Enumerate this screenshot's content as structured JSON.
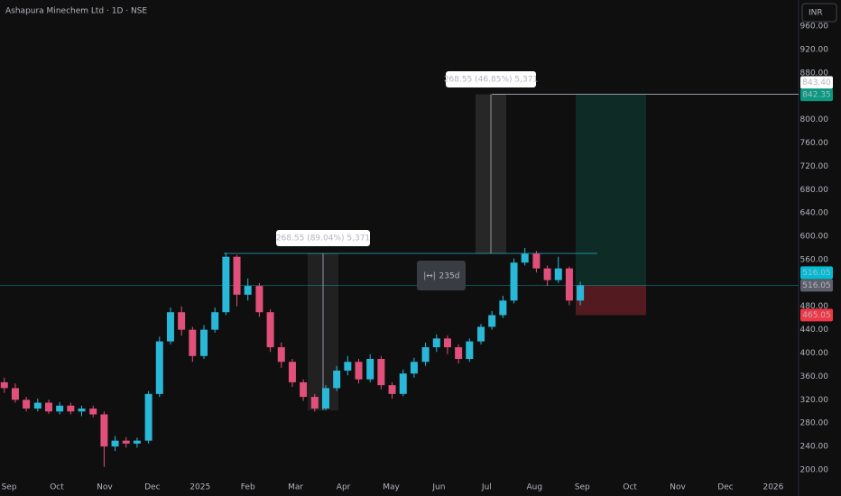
{
  "chart_data": {
    "type": "candlestick",
    "title": "Ashapura Minechem Ltd · 1D · NSE",
    "currency": "INR",
    "up_color": "#2ab8d8",
    "down_color": "#e0507a",
    "x": [
      -0.1,
      0.13,
      0.36,
      0.6,
      0.83,
      1.06,
      1.29,
      1.52,
      1.76,
      1.99,
      2.22,
      2.45,
      2.68,
      2.92,
      3.15,
      3.38,
      3.61,
      3.84,
      4.08,
      4.31,
      4.54,
      4.77,
      5,
      5.24,
      5.47,
      5.7,
      5.93,
      6.16,
      6.4,
      6.63,
      6.86,
      7.09,
      7.32,
      7.56,
      7.79,
      8.02,
      8.25,
      8.48,
      8.72,
      8.95,
      9.18,
      9.41,
      9.64,
      9.88,
      10.11,
      10.34,
      10.57,
      10.8,
      11.04,
      11.27,
      11.5,
      11.73,
      11.96
    ],
    "open": [
      350,
      340,
      320,
      305,
      315,
      300,
      310,
      300,
      305,
      295,
      240,
      250,
      245,
      250,
      330,
      420,
      470,
      440,
      395,
      440,
      470,
      565,
      500,
      515,
      470,
      410,
      385,
      350,
      325,
      305,
      340,
      370,
      385,
      355,
      390,
      345,
      330,
      365,
      385,
      410,
      425,
      410,
      390,
      420,
      445,
      465,
      490,
      555,
      570,
      545,
      525,
      545,
      490
    ],
    "high": [
      358,
      348,
      325,
      322,
      320,
      316,
      315,
      310,
      310,
      300,
      258,
      256,
      255,
      335,
      428,
      478,
      480,
      445,
      448,
      478,
      572,
      568,
      528,
      520,
      475,
      418,
      390,
      355,
      330,
      345,
      378,
      395,
      390,
      398,
      395,
      350,
      372,
      392,
      418,
      432,
      430,
      415,
      425,
      450,
      472,
      498,
      562,
      580,
      575,
      550,
      565,
      548,
      522
    ],
    "low": [
      332,
      315,
      300,
      300,
      296,
      295,
      295,
      292,
      290,
      205,
      232,
      238,
      238,
      245,
      325,
      415,
      430,
      385,
      390,
      435,
      465,
      480,
      490,
      462,
      402,
      375,
      342,
      318,
      300,
      302,
      335,
      362,
      348,
      350,
      338,
      322,
      326,
      358,
      378,
      402,
      398,
      382,
      385,
      415,
      440,
      460,
      485,
      550,
      538,
      515,
      520,
      482,
      482
    ],
    "close": [
      340,
      320,
      305,
      315,
      300,
      310,
      300,
      305,
      295,
      240,
      250,
      245,
      250,
      330,
      420,
      470,
      440,
      395,
      440,
      470,
      565,
      500,
      515,
      470,
      410,
      385,
      350,
      325,
      305,
      340,
      370,
      385,
      355,
      390,
      345,
      330,
      365,
      385,
      410,
      425,
      410,
      390,
      420,
      445,
      465,
      490,
      555,
      570,
      545,
      525,
      545,
      490,
      516.05
    ],
    "xlim": [
      -0.19,
      16.53
    ],
    "xticks": [
      {
        "value": 0,
        "label": "Sep"
      },
      {
        "value": 1,
        "label": "Oct"
      },
      {
        "value": 2,
        "label": "Nov"
      },
      {
        "value": 3,
        "label": "Dec"
      },
      {
        "value": 4,
        "label": "2025"
      },
      {
        "value": 5,
        "label": "Feb"
      },
      {
        "value": 6,
        "label": "Mar"
      },
      {
        "value": 7,
        "label": "Apr"
      },
      {
        "value": 8,
        "label": "May"
      },
      {
        "value": 9,
        "label": "Jun"
      },
      {
        "value": 10,
        "label": "Jul"
      },
      {
        "value": 11,
        "label": "Aug"
      },
      {
        "value": 12,
        "label": "Sep"
      },
      {
        "value": 13,
        "label": "Oct"
      },
      {
        "value": 14,
        "label": "Nov"
      },
      {
        "value": 15,
        "label": "Dec"
      },
      {
        "value": 16,
        "label": "2026"
      }
    ],
    "ylim": [
      200,
      960
    ],
    "yticks": [
      {
        "value": 200,
        "label": "200.00"
      },
      {
        "value": 240,
        "label": "240.00"
      },
      {
        "value": 280,
        "label": "280.00"
      },
      {
        "value": 320,
        "label": "320.00"
      },
      {
        "value": 360,
        "label": "360.00"
      },
      {
        "value": 400,
        "label": "400.00"
      },
      {
        "value": 440,
        "label": "440.00"
      },
      {
        "value": 480,
        "label": "480.00"
      },
      {
        "value": 520,
        "label": "520.00"
      },
      {
        "value": 560,
        "label": "560.00"
      },
      {
        "value": 600,
        "label": "600.00"
      },
      {
        "value": 640,
        "label": "640.00"
      },
      {
        "value": 680,
        "label": "680.00"
      },
      {
        "value": 720,
        "label": "720.00"
      },
      {
        "value": 760,
        "label": "760.00"
      },
      {
        "value": 800,
        "label": "800.00"
      },
      {
        "value": 840,
        "label": "840.00"
      },
      {
        "value": 880,
        "label": "880.00"
      },
      {
        "value": 920,
        "label": "920.00"
      },
      {
        "value": 960,
        "label": "960.00"
      }
    ],
    "price_tags": [
      {
        "value": 843.4,
        "label": "843.40",
        "color": "#ffffff",
        "text_color": "#131722"
      },
      {
        "value": 842.35,
        "label": "842.35",
        "color": "#089981",
        "text_color": "#ffffff"
      },
      {
        "value": 516.05,
        "label": "516.05",
        "color": "#00bcd4",
        "text_color": "#131722"
      },
      {
        "value": 516.05,
        "label": "516.05",
        "color": "#5d606b",
        "text_color": "#ffffff"
      },
      {
        "value": 465.05,
        "label": "465.05",
        "color": "#f23645",
        "text_color": "#ffffff"
      }
    ],
    "drawings": [
      {
        "text": "268.55 (89.04%) 5,371"
      },
      {
        "text": "268.55 (46.85%) 5,371"
      },
      {
        "text": "235d"
      }
    ]
  }
}
